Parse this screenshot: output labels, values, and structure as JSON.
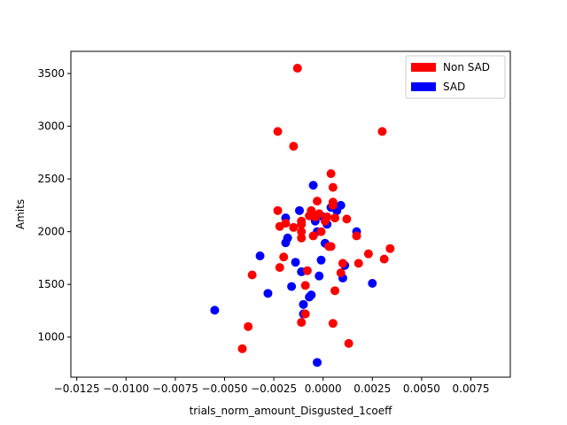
{
  "chart_data": {
    "type": "scatter",
    "title": "",
    "xlabel": "trials_norm_amount_Disgusted_1coeff",
    "ylabel": "Amits",
    "xlim": [
      -0.0128,
      0.0095
    ],
    "ylim": [
      620,
      3710
    ],
    "xticks": [
      -0.0125,
      -0.01,
      -0.0075,
      -0.005,
      -0.0025,
      0.0,
      0.0025,
      0.005,
      0.0075
    ],
    "xtick_labels": [
      "−0.0125",
      "−0.0100",
      "−0.0075",
      "−0.0050",
      "−0.0025",
      "0.0000",
      "0.0025",
      "0.0050",
      "0.0075"
    ],
    "yticks": [
      1000,
      1500,
      2000,
      2500,
      3000,
      3500
    ],
    "ytick_labels": [
      "1000",
      "1500",
      "2000",
      "2500",
      "3000",
      "3500"
    ],
    "grid": false,
    "legend_position": "upper right",
    "legend": [
      {
        "label": "Non SAD",
        "color": "#ff0000"
      },
      {
        "label": "SAD",
        "color": "#0000ff"
      }
    ],
    "series": [
      {
        "name": "SAD",
        "color": "#0000ff",
        "points": [
          [
            -0.0055,
            1255
          ],
          [
            -0.0032,
            1770
          ],
          [
            -0.0028,
            1415
          ],
          [
            -0.0019,
            1895
          ],
          [
            -0.0018,
            1940
          ],
          [
            -0.0016,
            1480
          ],
          [
            -0.0014,
            1710
          ],
          [
            -0.0012,
            2200
          ],
          [
            -0.0011,
            1620
          ],
          [
            -0.001,
            1310
          ],
          [
            -0.001,
            1220
          ],
          [
            -0.0007,
            1380
          ],
          [
            -0.0006,
            1400
          ],
          [
            -0.0005,
            2440
          ],
          [
            -0.0004,
            2100
          ],
          [
            -0.0003,
            2000
          ],
          [
            -0.0002,
            1580
          ],
          [
            -0.0001,
            1730
          ],
          [
            0.0,
            2140
          ],
          [
            0.0001,
            1890
          ],
          [
            0.0002,
            2070
          ],
          [
            0.0004,
            2230
          ],
          [
            0.0007,
            2200
          ],
          [
            0.0009,
            2250
          ],
          [
            0.001,
            1560
          ],
          [
            0.0011,
            1680
          ],
          [
            0.0017,
            2000
          ],
          [
            0.0025,
            1510
          ],
          [
            -0.0019,
            2130
          ],
          [
            -0.0003,
            760
          ]
        ]
      },
      {
        "name": "Non SAD",
        "color": "#ff0000",
        "points": [
          [
            -0.0041,
            890
          ],
          [
            -0.0038,
            1100
          ],
          [
            -0.0036,
            1590
          ],
          [
            -0.0023,
            2200
          ],
          [
            -0.0023,
            2950
          ],
          [
            -0.0022,
            2050
          ],
          [
            -0.0022,
            1660
          ],
          [
            -0.002,
            1760
          ],
          [
            -0.0019,
            2080
          ],
          [
            -0.0015,
            2040
          ],
          [
            -0.0015,
            2810
          ],
          [
            -0.0013,
            3550
          ],
          [
            -0.0011,
            2070
          ],
          [
            -0.0011,
            2000
          ],
          [
            -0.0011,
            1940
          ],
          [
            -0.0011,
            2100
          ],
          [
            -0.0011,
            1140
          ],
          [
            -0.0009,
            1490
          ],
          [
            -0.0009,
            1220
          ],
          [
            -0.0008,
            1630
          ],
          [
            -0.0007,
            2150
          ],
          [
            -0.0006,
            2200
          ],
          [
            -0.0005,
            1960
          ],
          [
            -0.0004,
            2140
          ],
          [
            -0.0003,
            2290
          ],
          [
            -0.0002,
            2170
          ],
          [
            -0.0001,
            2000
          ],
          [
            0.0001,
            2100
          ],
          [
            0.0002,
            2140
          ],
          [
            0.0003,
            1860
          ],
          [
            0.0004,
            1860
          ],
          [
            0.0004,
            2550
          ],
          [
            0.0005,
            2420
          ],
          [
            0.0005,
            2280
          ],
          [
            0.0005,
            2250
          ],
          [
            0.0005,
            1130
          ],
          [
            0.0006,
            2130
          ],
          [
            0.0006,
            1440
          ],
          [
            0.0009,
            1610
          ],
          [
            0.001,
            1700
          ],
          [
            0.0012,
            2120
          ],
          [
            0.0013,
            940
          ],
          [
            0.0017,
            1960
          ],
          [
            0.0018,
            1700
          ],
          [
            0.0023,
            1790
          ],
          [
            0.003,
            2950
          ],
          [
            0.0031,
            1740
          ],
          [
            0.0034,
            1840
          ]
        ]
      }
    ]
  }
}
